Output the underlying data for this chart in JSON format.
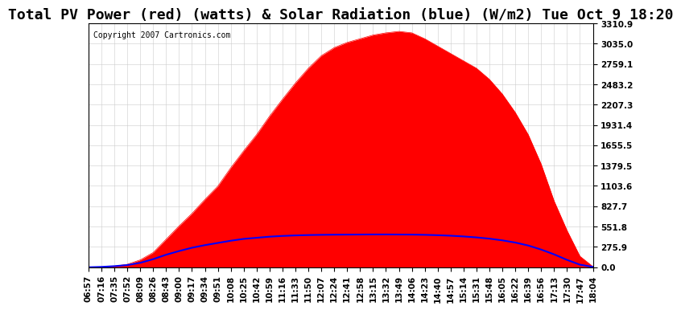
{
  "title": "Total PV Power (red) (watts) & Solar Radiation (blue) (W/m2) Tue Oct 9 18:20",
  "copyright": "Copyright 2007 Cartronics.com",
  "background_color": "#ffffff",
  "plot_bg_color": "#ffffff",
  "grid_color": "#cccccc",
  "yticks": [
    0.0,
    275.9,
    551.8,
    827.7,
    1103.6,
    1379.5,
    1655.5,
    1931.4,
    2207.3,
    2483.2,
    2759.1,
    3035.0,
    3310.9
  ],
  "ymax": 3310.9,
  "ymin": 0.0,
  "xtick_labels": [
    "06:57",
    "07:16",
    "07:35",
    "07:52",
    "08:09",
    "08:26",
    "08:43",
    "09:00",
    "09:17",
    "09:34",
    "09:51",
    "10:08",
    "10:25",
    "10:42",
    "10:59",
    "11:16",
    "11:33",
    "11:50",
    "12:07",
    "12:24",
    "12:41",
    "12:58",
    "13:15",
    "13:32",
    "13:49",
    "14:06",
    "14:23",
    "14:40",
    "14:57",
    "15:14",
    "15:31",
    "15:48",
    "16:05",
    "16:22",
    "16:39",
    "16:56",
    "17:13",
    "17:30",
    "17:47",
    "18:04"
  ],
  "pv_color": "#ff0000",
  "pv_fill_color": "#ff0000",
  "solar_color": "#0000ff",
  "pv_data": [
    0,
    5,
    15,
    40,
    100,
    200,
    380,
    560,
    730,
    920,
    1100,
    1350,
    1580,
    1800,
    2050,
    2280,
    2500,
    2700,
    2870,
    2980,
    3050,
    3100,
    3150,
    3180,
    3200,
    3180,
    3100,
    3000,
    2900,
    2800,
    2700,
    2550,
    2350,
    2100,
    1800,
    1400,
    900,
    500,
    150,
    10
  ],
  "solar_data": [
    0,
    5,
    15,
    30,
    60,
    110,
    170,
    220,
    265,
    300,
    330,
    360,
    385,
    400,
    415,
    425,
    432,
    437,
    440,
    442,
    443,
    444,
    445,
    445,
    444,
    443,
    440,
    435,
    428,
    418,
    405,
    388,
    365,
    335,
    295,
    240,
    175,
    100,
    35,
    5
  ],
  "title_fontsize": 13,
  "tick_fontsize": 7.5,
  "copyright_fontsize": 7
}
